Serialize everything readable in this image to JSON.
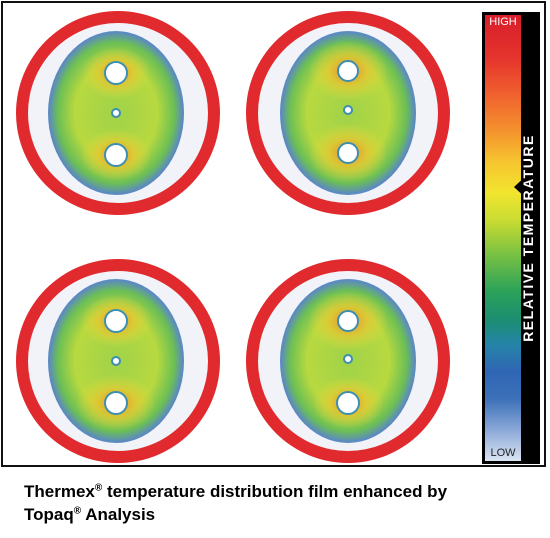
{
  "scale": {
    "high_label": "HIGH",
    "low_label": "LOW",
    "axis_label": "RELATIVE TEMPERATURE"
  },
  "caption": {
    "line1_prefix": "Thermex",
    "line1_mark": "®",
    "line1_suffix": " temperature distribution film enhanced by",
    "line2_prefix": "Topaq",
    "line2_mark": "®",
    "line2_suffix": " Analysis"
  },
  "colors": {
    "ring": "#e02a2e",
    "halo": "#f1f3f8",
    "blue": "#4f7fc0",
    "green": "#8fcf4c",
    "yellow": "#f2e23c",
    "orange": "#ef8a2c"
  }
}
